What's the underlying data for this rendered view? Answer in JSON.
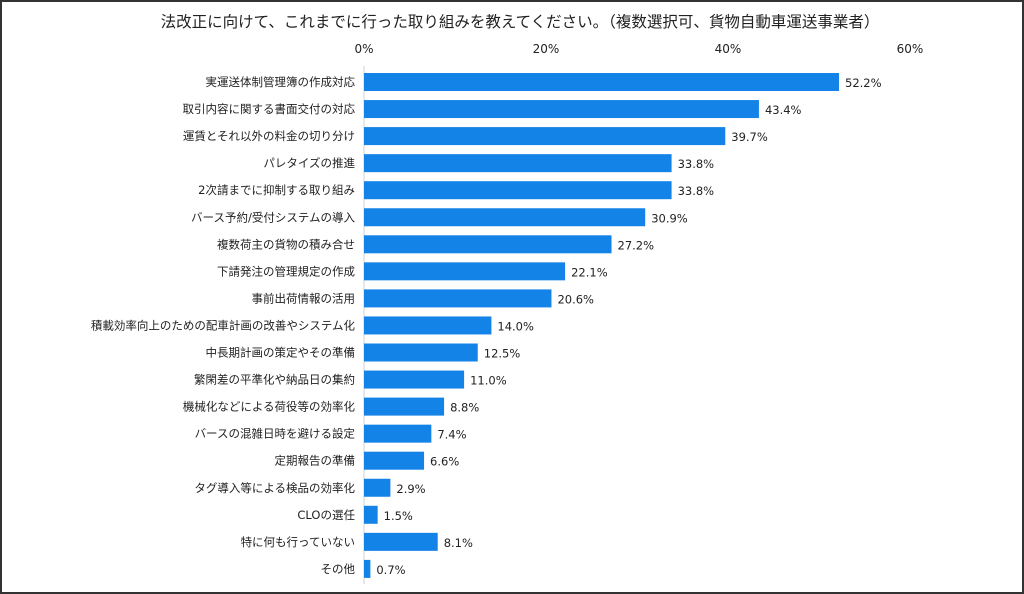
{
  "chart_data": {
    "type": "bar",
    "orientation": "horizontal",
    "title": "法改正に向けて、これまでに行った取り組みを教えてください。（複数選択可、貨物自動車運送事業者）",
    "xlim": [
      0,
      60
    ],
    "ticks": [
      0,
      20,
      40,
      60
    ],
    "tick_labels": [
      "0%",
      "20%",
      "40%",
      "60%"
    ],
    "axis_position": "top",
    "grid": false,
    "bar_color": "#1483E8",
    "categories": [
      "実運送体制管理簿の作成対応",
      "取引内容に関する書面交付の対応",
      "運賃とそれ以外の料金の切り分け",
      "パレタイズの推進",
      "2次請までに抑制する取り組み",
      "バース予約/受付システムの導入",
      "複数荷主の貨物の積み合せ",
      "下請発注の管理規定の作成",
      "事前出荷情報の活用",
      "積載効率向上のための配車計画の改善やシステム化",
      "中長期計画の策定やその準備",
      "繁閑差の平準化や納品日の集約",
      "機械化などによる荷役等の効率化",
      "バースの混雑日時を避ける設定",
      "定期報告の準備",
      "タグ導入等による検品の効率化",
      "CLOの選任",
      "特に何も行っていない",
      "その他"
    ],
    "values": [
      52.2,
      43.4,
      39.7,
      33.8,
      33.8,
      30.9,
      27.2,
      22.1,
      20.6,
      14.0,
      12.5,
      11.0,
      8.8,
      7.4,
      6.6,
      2.9,
      1.5,
      8.1,
      0.7
    ],
    "value_labels": [
      "52.2%",
      "43.4%",
      "39.7%",
      "33.8%",
      "33.8%",
      "30.9%",
      "27.2%",
      "22.1%",
      "20.6%",
      "14.0%",
      "12.5%",
      "11.0%",
      "8.8%",
      "7.4%",
      "6.6%",
      "2.9%",
      "1.5%",
      "8.1%",
      "0.7%"
    ]
  }
}
